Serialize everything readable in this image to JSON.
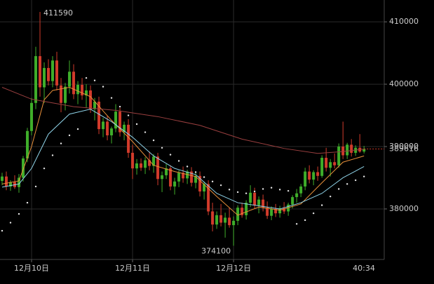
{
  "chart_data": {
    "type": "candlestick",
    "x_start": -7,
    "up_color": "#3fae2a",
    "down_color": "#d23b2b",
    "candles": [
      [
        384500,
        385800,
        383800,
        385200
      ],
      [
        385200,
        386000,
        383000,
        383600
      ],
      [
        383600,
        384600,
        382900,
        384300
      ],
      [
        384300,
        385400,
        383200,
        383500
      ],
      [
        383500,
        385600,
        382600,
        385000
      ],
      [
        385000,
        388500,
        384400,
        388100
      ],
      [
        388100,
        393000,
        387500,
        392500
      ],
      [
        392500,
        397800,
        391800,
        397000
      ],
      [
        397000,
        406000,
        396000,
        404500
      ],
      [
        404500,
        411590,
        398000,
        399500
      ],
      [
        399500,
        403500,
        397000,
        402600
      ],
      [
        402600,
        404000,
        399800,
        400500
      ],
      [
        400500,
        404500,
        399500,
        403800
      ],
      [
        403800,
        405200,
        399000,
        399800
      ],
      [
        399800,
        401000,
        395500,
        397000
      ],
      [
        397000,
        400200,
        395800,
        399600
      ],
      [
        399600,
        403800,
        398500,
        402000
      ],
      [
        402000,
        403200,
        397600,
        398400
      ],
      [
        398400,
        400500,
        396800,
        399900
      ],
      [
        399900,
        401000,
        397500,
        398200
      ],
      [
        398200,
        400000,
        396200,
        399000
      ],
      [
        399000,
        399800,
        395400,
        396000
      ],
      [
        396000,
        397800,
        394200,
        397200
      ],
      [
        397200,
        398000,
        392000,
        392800
      ],
      [
        392800,
        394600,
        391500,
        394000
      ],
      [
        394000,
        395000,
        391000,
        391800
      ],
      [
        391800,
        393200,
        390500,
        392900
      ],
      [
        392900,
        396800,
        392300,
        395600
      ],
      [
        395600,
        396200,
        391600,
        392300
      ],
      [
        392300,
        394000,
        391000,
        393500
      ],
      [
        393500,
        394400,
        388200,
        389000
      ],
      [
        389000,
        390300,
        384800,
        386500
      ],
      [
        386500,
        388000,
        385500,
        387300
      ],
      [
        387300,
        388100,
        386100,
        386600
      ],
      [
        386600,
        388300,
        385600,
        387800
      ],
      [
        387800,
        389200,
        386200,
        386900
      ],
      [
        386900,
        388800,
        385800,
        388400
      ],
      [
        388400,
        389000,
        383800,
        384800
      ],
      [
        384800,
        386000,
        382700,
        385400
      ],
      [
        385400,
        387200,
        384800,
        386500
      ],
      [
        386500,
        387000,
        383000,
        383600
      ],
      [
        383600,
        385000,
        382300,
        384400
      ],
      [
        384400,
        386200,
        383500,
        385800
      ],
      [
        385800,
        386800,
        384200,
        384900
      ],
      [
        384900,
        386300,
        384000,
        386000
      ],
      [
        386000,
        386700,
        383600,
        384200
      ],
      [
        384200,
        385800,
        383300,
        385300
      ],
      [
        385300,
        386000,
        382000,
        382800
      ],
      [
        382800,
        384400,
        381500,
        384000
      ],
      [
        384000,
        384600,
        379000,
        379600
      ],
      [
        379600,
        381000,
        376400,
        377500
      ],
      [
        377500,
        379600,
        376800,
        379000
      ],
      [
        379000,
        380800,
        377200,
        377800
      ],
      [
        377800,
        379400,
        375400,
        378600
      ],
      [
        378600,
        380200,
        377000,
        377400
      ],
      [
        377400,
        378800,
        374100,
        378100
      ],
      [
        378100,
        380600,
        377400,
        380200
      ],
      [
        380200,
        381000,
        378600,
        379000
      ],
      [
        379000,
        381400,
        378300,
        381000
      ],
      [
        381000,
        383800,
        380300,
        382600
      ],
      [
        382600,
        383400,
        380000,
        380600
      ],
      [
        380600,
        382000,
        379300,
        381500
      ],
      [
        381500,
        382300,
        379600,
        380200
      ],
      [
        380200,
        381200,
        378400,
        378900
      ],
      [
        378900,
        380400,
        378200,
        380000
      ],
      [
        380000,
        380800,
        378700,
        379300
      ],
      [
        379300,
        380500,
        378600,
        380100
      ],
      [
        380100,
        381100,
        379200,
        379600
      ],
      [
        379600,
        381000,
        378900,
        380700
      ],
      [
        380700,
        382200,
        380100,
        381900
      ],
      [
        381900,
        383200,
        381000,
        382500
      ],
      [
        382500,
        384000,
        381900,
        383600
      ],
      [
        383600,
        386600,
        383000,
        386000
      ],
      [
        386000,
        387000,
        384100,
        384700
      ],
      [
        384700,
        386200,
        383800,
        385900
      ],
      [
        385900,
        386800,
        384500,
        385300
      ],
      [
        385300,
        388600,
        385000,
        388200
      ],
      [
        388200,
        389800,
        386000,
        386600
      ],
      [
        386600,
        388000,
        385200,
        387500
      ],
      [
        387500,
        388900,
        386500,
        387000
      ],
      [
        387000,
        390500,
        386600,
        390000
      ],
      [
        390000,
        394000,
        388000,
        388600
      ],
      [
        388600,
        390600,
        388000,
        390300
      ],
      [
        390300,
        391200,
        388400,
        389000
      ],
      [
        389000,
        390200,
        388500,
        389800
      ],
      [
        389800,
        392000,
        389000,
        389200
      ],
      [
        389200,
        390100,
        388900,
        389616
      ]
    ],
    "lines": [
      {
        "color": "#e8903a",
        "x": [
          -7,
          -3,
          0,
          3,
          5,
          9,
          14,
          19,
          24,
          29,
          34,
          39,
          44,
          49,
          54,
          59,
          64,
          69,
          74,
          79
        ],
        "values": [
          384000,
          384500,
          390000,
          397500,
          399000,
          399500,
          398000,
          394200,
          390800,
          387000,
          386000,
          385200,
          382000,
          379000,
          380300,
          379800,
          380800,
          384200,
          387500,
          388500
        ]
      },
      {
        "color": "#8fd3e8",
        "x": [
          -7,
          -3,
          0,
          4,
          9,
          14,
          19,
          24,
          29,
          34,
          39,
          44,
          49,
          54,
          59,
          64,
          69,
          74,
          79
        ],
        "values": [
          383500,
          384000,
          386500,
          392000,
          395200,
          396000,
          394000,
          391500,
          388500,
          386500,
          385500,
          382500,
          381000,
          380500,
          380000,
          381000,
          382500,
          385000,
          386800
        ]
      },
      {
        "color": "#9a3f3f",
        "x": [
          -7,
          0,
          10,
          20,
          30,
          40,
          50,
          60,
          68,
          74,
          79
        ],
        "values": [
          399500,
          397600,
          396400,
          395800,
          394800,
          393400,
          391200,
          389700,
          388900,
          389200,
          389600
        ]
      }
    ],
    "sar": {
      "color": "#e8e8e8",
      "x": [
        -7,
        -5,
        -3,
        -1,
        1,
        3,
        5,
        7,
        9,
        11,
        13,
        15,
        17,
        19,
        21,
        23,
        25,
        27,
        29,
        31,
        33,
        35,
        37,
        39,
        41,
        43,
        45,
        47,
        49,
        51,
        53,
        55,
        57,
        59,
        61,
        63,
        65,
        67,
        69,
        71,
        73,
        75,
        77,
        79
      ],
      "values": [
        376500,
        377800,
        379200,
        381000,
        383600,
        386500,
        388600,
        390500,
        391800,
        392800,
        401000,
        400600,
        399600,
        397800,
        396400,
        395000,
        393600,
        392300,
        391000,
        389800,
        388700,
        387700,
        386800,
        385900,
        385100,
        384400,
        383800,
        383100,
        382700,
        382500,
        382800,
        383200,
        383400,
        383100,
        382900,
        377600,
        378200,
        379300,
        380600,
        382000,
        383200,
        384000,
        384600,
        385200
      ]
    },
    "xlim": [
      -7.5,
      83.8
    ],
    "xticks": [
      {
        "value": 0,
        "label": "12月10日"
      },
      {
        "value": 24,
        "label": "12月11日"
      },
      {
        "value": 48,
        "label": "12月12日"
      }
    ],
    "ylim": [
      371900,
      413500
    ],
    "yticks": [
      380000,
      390000,
      400000,
      410000
    ],
    "countdown": "40:34",
    "grid": true
  }
}
